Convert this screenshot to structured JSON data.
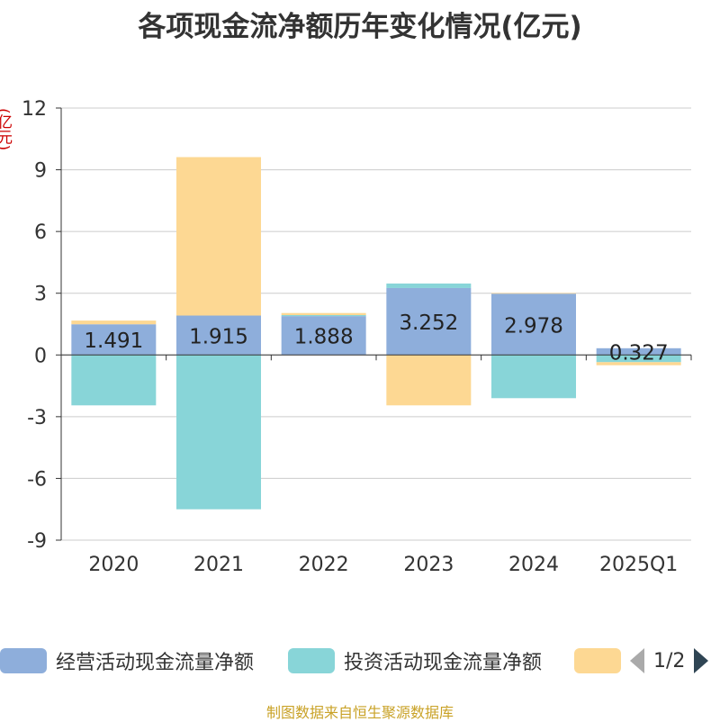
{
  "chart_data": {
    "type": "bar",
    "title": "各项现金流净额历年变化情况(亿元)",
    "ylabel": "(亿元)",
    "categories": [
      "2020",
      "2021",
      "2022",
      "2023",
      "2024",
      "2025Q1"
    ],
    "ylim": [
      -9,
      12
    ],
    "yticks": [
      12,
      9,
      6,
      3,
      0,
      -3,
      -6,
      -9
    ],
    "stacked": true,
    "grid": true,
    "series": [
      {
        "name": "经营活动现金流量净额",
        "color": "#8eaedb",
        "values": [
          1.491,
          1.915,
          1.888,
          3.252,
          2.978,
          0.327
        ],
        "labels": [
          "1.491",
          "1.915",
          "1.888",
          "3.252",
          "2.978",
          "0.327"
        ]
      },
      {
        "name": "投资活动现金流量净额",
        "color": "#88d5d8",
        "values": [
          -2.45,
          -7.5,
          0.05,
          0.22,
          -2.1,
          -0.35
        ]
      },
      {
        "name": "",
        "color": "#fdd893",
        "values": [
          0.18,
          7.7,
          0.1,
          -2.45,
          0.03,
          -0.15
        ]
      }
    ],
    "legend_position": "bottom"
  },
  "legend": {
    "items": [
      {
        "label": "经营活动现金流量净额",
        "color": "#8eaedb"
      },
      {
        "label": "投资活动现金流量净额",
        "color": "#88d5d8"
      },
      {
        "label": "",
        "color": "#fdd893"
      }
    ],
    "page": "1/2"
  },
  "source": "制图数据来自恒生聚源数据库"
}
